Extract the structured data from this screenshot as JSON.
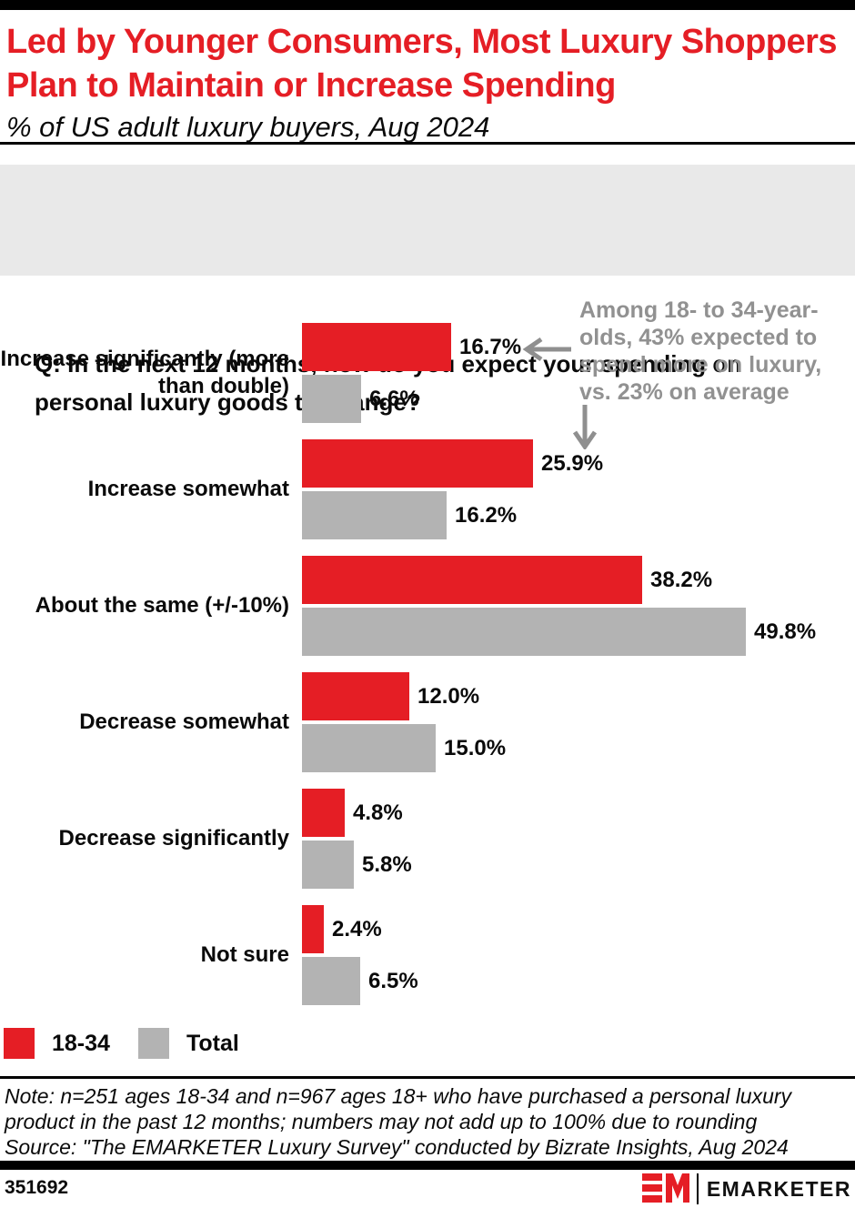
{
  "header": {
    "title_lines": [
      "Led by Younger Consumers, Most Luxury Shoppers",
      "Plan to Maintain or Increase Spending"
    ],
    "subtitle": "% of US adult luxury buyers, Aug 2024"
  },
  "question": {
    "lines": [
      "Q: In the next 12 months, how do you expect your spending on",
      "personal luxury goods to change?"
    ]
  },
  "annotation": {
    "lines": [
      "Among 18- to 34-year-",
      "olds, 43% expected to",
      "spend more on luxury,",
      "vs. 23% on average"
    ],
    "color": "#919191"
  },
  "chart_data": {
    "type": "bar",
    "orientation": "horizontal",
    "categories": [
      "Increase significantly (more than double)",
      "Increase somewhat",
      "About the same (+/-10%)",
      "Decrease somewhat",
      "Decrease significantly",
      "Not sure"
    ],
    "series": [
      {
        "name": "18-34",
        "color": "#E51E25",
        "values": [
          16.7,
          25.9,
          38.2,
          12.0,
          4.8,
          2.4
        ]
      },
      {
        "name": "Total",
        "color": "#B3B3B3",
        "values": [
          6.6,
          16.2,
          49.8,
          15.0,
          5.8,
          6.5
        ]
      }
    ],
    "value_label_format": "percent_one_decimal",
    "xlim": [
      0,
      56
    ],
    "grid": false,
    "legend_position": "bottom-left",
    "title": "Led by Younger Consumers, Most Luxury Shoppers Plan to Maintain or Increase Spending",
    "xlabel": "",
    "ylabel": ""
  },
  "legend": [
    {
      "label": "18-34",
      "color": "#E51E25"
    },
    {
      "label": "Total",
      "color": "#B3B3B3"
    }
  ],
  "note": {
    "lines": [
      "Note: n=251 ages 18-34 and n=967 ages 18+ who have purchased a personal luxury",
      "product in the past 12 months; numbers may not add up to 100% due to rounding",
      "Source: \"The EMARKETER Luxury Survey\" conducted by Bizrate Insights, Aug 2024"
    ]
  },
  "footer": {
    "chart_number": "351692",
    "brand": "EMARKETER"
  },
  "colors": {
    "accent_red": "#E51E25",
    "bar_gray": "#B3B3B3",
    "annotation_gray": "#919191",
    "question_box_bg": "#E9E9E9",
    "rule_black": "#000000"
  }
}
